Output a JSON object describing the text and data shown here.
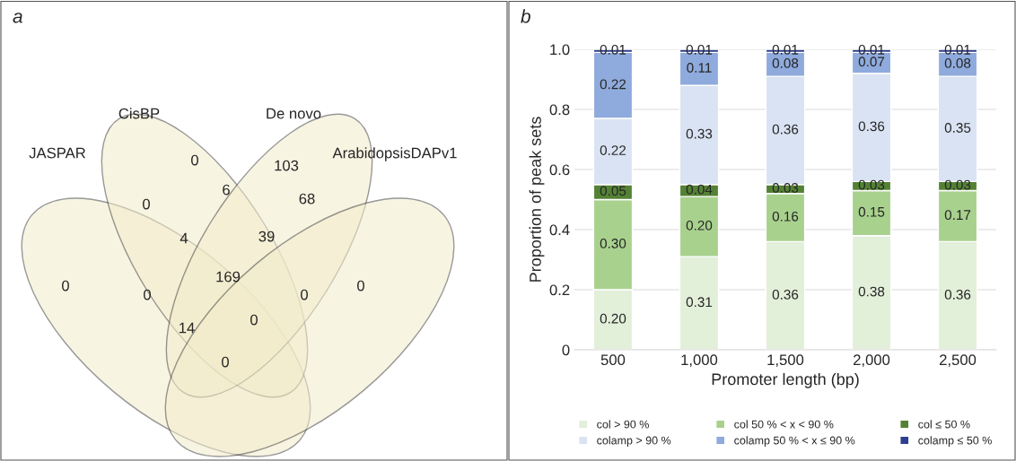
{
  "chart_data": [
    {
      "type": "other",
      "title": "a",
      "categories": [
        "JASPAR",
        "CisBP",
        "De novo",
        "ArabidopsisDAPv1"
      ],
      "annotations": [
        "0",
        "103",
        "6",
        "68",
        "0",
        "4",
        "39",
        "0",
        "0",
        "169",
        "0",
        "0",
        "14",
        "0",
        "0"
      ]
    },
    {
      "type": "bar",
      "title": "b",
      "stacked": true,
      "categories": [
        "500",
        "1,000",
        "1,500",
        "2,000",
        "2,500"
      ],
      "xlabel": "Promoter length (bp)",
      "ylabel": "Proportion of peak sets",
      "ylim": [
        0,
        1
      ],
      "yticks": [
        0,
        0.2,
        0.4,
        0.6,
        0.8,
        {
          "value": 1,
          "label": "1.0"
        }
      ],
      "grid": "y",
      "legend": "bottom",
      "series": [
        {
          "name": "col > 90 %",
          "color": "#e2efd9",
          "values": [
            0.2,
            0.31,
            0.36,
            0.38,
            0.36
          ],
          "value_labels": [
            "0.20",
            "0.31",
            "0.36",
            "0.38",
            "0.36"
          ]
        },
        {
          "name": "col 50 % < x < 90 %",
          "color": "#a9d18e",
          "values": [
            0.3,
            0.2,
            0.16,
            0.15,
            0.17
          ],
          "value_labels": [
            "0.30",
            "0.20",
            "0.16",
            "0.15",
            "0.17"
          ]
        },
        {
          "name": "col ≤ 50 %",
          "color": "#548235",
          "values": [
            0.05,
            0.04,
            0.03,
            0.03,
            0.03
          ],
          "value_labels": [
            "0.05",
            "0.04",
            "0.03",
            "0.03",
            "0.03"
          ]
        },
        {
          "name": "colamp > 90 %",
          "color": "#dae3f3",
          "values": [
            0.22,
            0.33,
            0.36,
            0.36,
            0.35
          ],
          "value_labels": [
            "0.22",
            "0.33",
            "0.36",
            "0.36",
            "0.35"
          ]
        },
        {
          "name": "colamp 50 % < x ≤ 90 %",
          "color": "#8faadc",
          "values": [
            0.22,
            0.11,
            0.08,
            0.07,
            0.08
          ],
          "value_labels": [
            "0.22",
            "0.11",
            "0.08",
            "0.07",
            "0.08"
          ]
        },
        {
          "name": "colamp ≤ 50 %",
          "color": "#2f3f8f",
          "values": [
            0.01,
            0.01,
            0.01,
            0.01,
            0.01
          ],
          "value_labels": [
            "0.01",
            "0.01",
            "0.01",
            "0.01",
            "0.01"
          ]
        }
      ]
    }
  ]
}
